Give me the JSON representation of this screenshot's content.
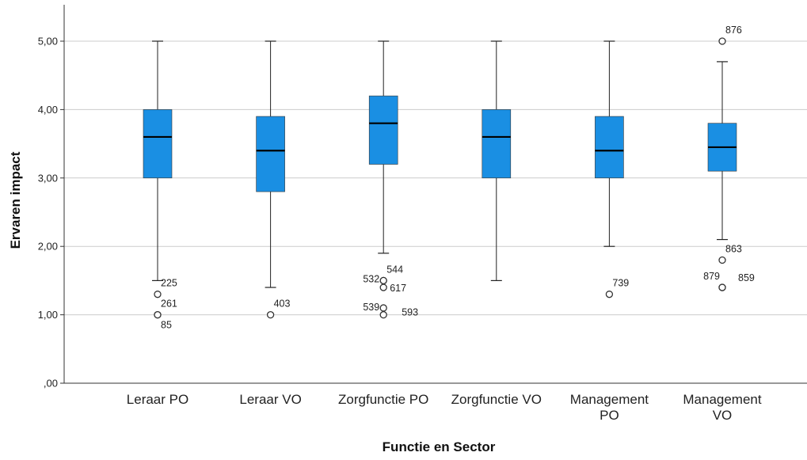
{
  "chart_data": {
    "type": "boxplot",
    "xlabel": "Functie en Sector",
    "ylabel": "Ervaren impact",
    "ylim": [
      0,
      5.4
    ],
    "yticks": [
      0,
      1,
      2,
      3,
      4,
      5
    ],
    "ytick_labels": [
      ",00",
      "1,00",
      "2,00",
      "3,00",
      "4,00",
      "5,00"
    ],
    "grid": true,
    "colors": {
      "box": "#1a8fe3",
      "box_edge": "#333333",
      "median": "#000000",
      "grid": "#cccccc"
    },
    "categories": [
      {
        "label_lines": [
          "Leraar PO"
        ],
        "whisker_low": 1.5,
        "q1": 3.0,
        "median": 3.6,
        "q3": 4.0,
        "whisker_high": 5.0,
        "outliers": [
          {
            "id": "225",
            "value": 1.3
          },
          {
            "id": "261",
            "value": 1.0
          },
          {
            "id": "85",
            "value": 1.0
          }
        ]
      },
      {
        "label_lines": [
          "Leraar VO"
        ],
        "whisker_low": 1.4,
        "q1": 2.8,
        "median": 3.4,
        "q3": 3.9,
        "whisker_high": 5.0,
        "outliers": [
          {
            "id": "403",
            "value": 1.0
          }
        ]
      },
      {
        "label_lines": [
          "Zorgfunctie PO"
        ],
        "whisker_low": 1.9,
        "q1": 3.2,
        "median": 3.8,
        "q3": 4.2,
        "whisker_high": 5.0,
        "outliers": [
          {
            "id": "544",
            "value": 1.5
          },
          {
            "id": "532",
            "value": 1.5
          },
          {
            "id": "617",
            "value": 1.4
          },
          {
            "id": "539",
            "value": 1.1
          },
          {
            "id": "593",
            "value": 1.0
          }
        ]
      },
      {
        "label_lines": [
          "Zorgfunctie VO"
        ],
        "whisker_low": 1.5,
        "q1": 3.0,
        "median": 3.6,
        "q3": 4.0,
        "whisker_high": 5.0,
        "outliers": []
      },
      {
        "label_lines": [
          "Management",
          "PO"
        ],
        "whisker_low": 2.0,
        "q1": 3.0,
        "median": 3.4,
        "q3": 3.9,
        "whisker_high": 5.0,
        "outliers": [
          {
            "id": "739",
            "value": 1.3
          }
        ]
      },
      {
        "label_lines": [
          "Management",
          "VO"
        ],
        "whisker_low": 2.1,
        "q1": 3.1,
        "median": 3.45,
        "q3": 3.8,
        "whisker_high": 4.7,
        "outliers": [
          {
            "id": "876",
            "value": 5.0
          },
          {
            "id": "863",
            "value": 1.8
          },
          {
            "id": "879",
            "value": 1.4
          },
          {
            "id": "859",
            "value": 1.4
          }
        ]
      }
    ]
  }
}
